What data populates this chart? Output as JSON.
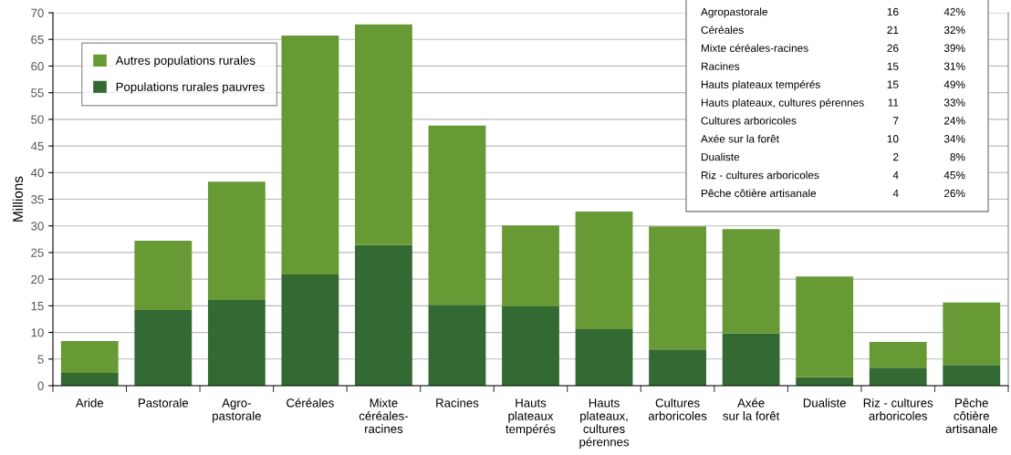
{
  "chart_data": {
    "type": "bar",
    "stacked": true,
    "ylabel": "Millions",
    "categories": [
      "Aride",
      "Pastorale",
      "Agro-\npastorale",
      "Céréales",
      "Mixte\ncéréales-\nracines",
      "Racines",
      "Hauts\nplateaux\ntempérés",
      "Hauts\nplateaux,\ncultures\npérennes",
      "Cultures\narboricoles",
      "Axée\nsur la forêt",
      "Dualiste",
      "Riz - cultures\narboricoles",
      "Pêche\ncôtière\nartisanale"
    ],
    "series": [
      {
        "name": "Populations rurales pauvres",
        "color": "#336933",
        "values": [
          2.4,
          14.2,
          16.1,
          20.9,
          26.4,
          15.2,
          14.9,
          10.6,
          6.8,
          9.8,
          1.6,
          3.4,
          3.9
        ]
      },
      {
        "name": "Autres populations rurales",
        "color": "#679a34",
        "values": [
          6.0,
          13.0,
          22.2,
          44.8,
          41.4,
          33.6,
          15.2,
          22.1,
          23.1,
          19.6,
          18.9,
          4.8,
          11.7
        ]
      }
    ],
    "ylim": [
      0,
      70
    ],
    "yticks": [
      0,
      5,
      10,
      15,
      20,
      25,
      30,
      35,
      40,
      45,
      50,
      55,
      60,
      65,
      70
    ],
    "grid": "y",
    "legend": "top left",
    "annotations": [
      "Agropastorale",
      "16",
      "42%",
      "Céréales",
      "21",
      "32%",
      "Mixte céréales-racines",
      "26",
      "39%",
      "Racines",
      "15",
      "31%",
      "Hauts plateaux tempérés",
      "15",
      "49%",
      "Hauts plateaux, cultures pérennes",
      "11",
      "33%",
      "Cultures arboricoles",
      "7",
      "24%",
      "Axée sur la forêt",
      "10",
      "34%",
      "Dualiste",
      "2",
      "8%",
      "Riz - cultures arboricoles",
      "4",
      "45%",
      "Pêche côtière artisanale",
      "4",
      "26%"
    ]
  }
}
